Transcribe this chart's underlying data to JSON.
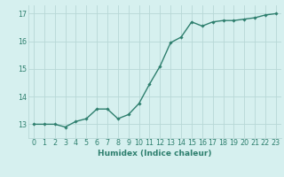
{
  "x": [
    0,
    1,
    2,
    3,
    4,
    5,
    6,
    7,
    8,
    9,
    10,
    11,
    12,
    13,
    14,
    15,
    16,
    17,
    18,
    19,
    20,
    21,
    22,
    23
  ],
  "y": [
    13.0,
    13.0,
    13.0,
    12.9,
    13.1,
    13.2,
    13.55,
    13.55,
    13.2,
    13.35,
    13.75,
    14.45,
    15.1,
    15.95,
    16.15,
    16.7,
    16.55,
    16.7,
    16.75,
    16.75,
    16.8,
    16.85,
    16.95,
    17.0
  ],
  "line_color": "#2e7f6e",
  "marker": "D",
  "marker_size": 1.8,
  "background_color": "#d6f0ef",
  "grid_color": "#b8d8d6",
  "tick_color": "#2e7f6e",
  "xlabel": "Humidex (Indice chaleur)",
  "xlim": [
    -0.5,
    23.5
  ],
  "ylim": [
    12.5,
    17.3
  ],
  "yticks": [
    13,
    14,
    15,
    16,
    17
  ],
  "xticks": [
    0,
    1,
    2,
    3,
    4,
    5,
    6,
    7,
    8,
    9,
    10,
    11,
    12,
    13,
    14,
    15,
    16,
    17,
    18,
    19,
    20,
    21,
    22,
    23
  ],
  "xlabel_fontsize": 6.5,
  "tick_fontsize": 5.8,
  "line_width": 1.0
}
